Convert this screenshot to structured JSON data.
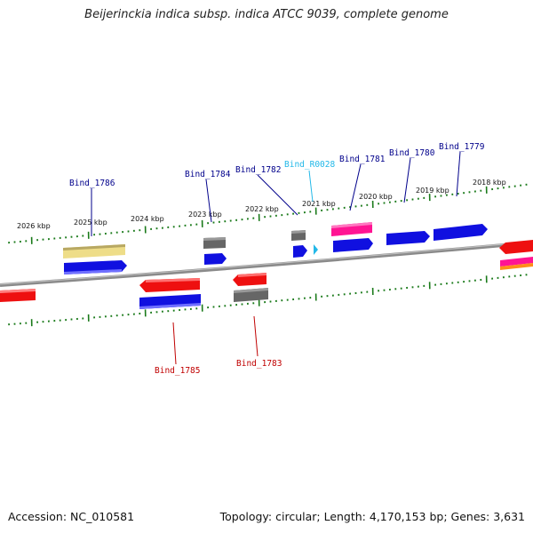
{
  "title": "Beijerinckia indica subsp. indica ATCC 9039, complete genome",
  "footer": {
    "accession": "Accession: NC_010581",
    "summary": "Topology: circular; Length: 4,170,153 bp; Genes: 3,631"
  },
  "colors": {
    "backbone": "#8a8a8a",
    "tick": "#1a7a1a",
    "cds_forward": "#1010e0",
    "cds_reverse": "#ee1010",
    "pseudogene": "#666666",
    "rna_magenta": "#ff1493",
    "trna": "#22b8e8",
    "misc_yellow": "#eedd88",
    "label_forward": "#00008b",
    "label_reverse": "#c00000",
    "label_rna": "#22b8e8"
  },
  "scale_labels": [
    "2026 kbp",
    "2025 kbp",
    "2024 kbp",
    "2023 kbp",
    "2022 kbp",
    "2021 kbp",
    "2020 kbp",
    "2019 kbp",
    "2018 kbp"
  ],
  "gene_labels": [
    {
      "text": "Bind_1786",
      "strand": "forward"
    },
    {
      "text": "Bind_1784",
      "strand": "forward"
    },
    {
      "text": "Bind_1782",
      "strand": "forward"
    },
    {
      "text": "Bind_R0028",
      "strand": "rna"
    },
    {
      "text": "Bind_1781",
      "strand": "forward"
    },
    {
      "text": "Bind_1780",
      "strand": "forward"
    },
    {
      "text": "Bind_1779",
      "strand": "forward"
    },
    {
      "text": "Bind_1785",
      "strand": "reverse"
    },
    {
      "text": "Bind_1783",
      "strand": "reverse"
    }
  ]
}
